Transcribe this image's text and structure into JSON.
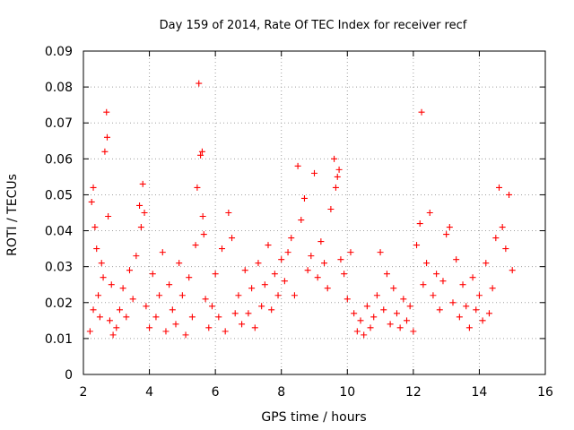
{
  "chart_data": {
    "type": "scatter",
    "title": "Day 159 of 2014, Rate Of TEC Index for receiver recf",
    "xlabel": "GPS time / hours",
    "ylabel": "ROTI / TECUs",
    "xlim": [
      2,
      16
    ],
    "ylim": [
      0,
      0.09
    ],
    "xticks": [
      2,
      4,
      6,
      8,
      10,
      12,
      14,
      16
    ],
    "xtick_labels": [
      "2",
      "4",
      "6",
      "8",
      "10",
      "12",
      "14",
      "16"
    ],
    "yticks": [
      0,
      0.01,
      0.02,
      0.03,
      0.04,
      0.05,
      0.06,
      0.07,
      0.08,
      0.09
    ],
    "ytick_labels": [
      "0",
      "0.01",
      "0.02",
      "0.03",
      "0.04",
      "0.05",
      "0.06",
      "0.07",
      "0.08",
      "0.09"
    ],
    "grid": true,
    "marker": "+",
    "series": [
      {
        "name": "ROTI",
        "color": "#ff0000",
        "x": [
          2.2,
          2.25,
          2.3,
          2.3,
          2.35,
          2.4,
          2.45,
          2.5,
          2.55,
          2.6,
          2.65,
          2.7,
          2.72,
          2.75,
          2.8,
          2.85,
          2.9,
          3.0,
          3.1,
          3.2,
          3.3,
          3.4,
          3.5,
          3.6,
          3.7,
          3.75,
          3.8,
          3.85,
          3.9,
          4.0,
          4.1,
          4.2,
          4.3,
          4.4,
          4.5,
          4.6,
          4.7,
          4.8,
          4.9,
          5.0,
          5.1,
          5.2,
          5.3,
          5.4,
          5.45,
          5.5,
          5.55,
          5.6,
          5.62,
          5.65,
          5.7,
          5.8,
          5.9,
          6.0,
          6.1,
          6.2,
          6.3,
          6.4,
          6.5,
          6.6,
          6.7,
          6.8,
          6.9,
          7.0,
          7.1,
          7.2,
          7.3,
          7.4,
          7.5,
          7.6,
          7.7,
          7.8,
          7.9,
          8.0,
          8.1,
          8.2,
          8.3,
          8.4,
          8.5,
          8.6,
          8.7,
          8.8,
          8.9,
          9.0,
          9.1,
          9.2,
          9.3,
          9.4,
          9.5,
          9.6,
          9.65,
          9.7,
          9.75,
          9.8,
          9.9,
          10.0,
          10.1,
          10.2,
          10.3,
          10.4,
          10.5,
          10.6,
          10.7,
          10.8,
          10.9,
          11.0,
          11.1,
          11.2,
          11.3,
          11.4,
          11.5,
          11.6,
          11.7,
          11.8,
          11.9,
          12.0,
          12.1,
          12.2,
          12.25,
          12.3,
          12.4,
          12.5,
          12.6,
          12.7,
          12.8,
          12.9,
          13.0,
          13.1,
          13.2,
          13.3,
          13.4,
          13.5,
          13.6,
          13.7,
          13.8,
          13.9,
          14.0,
          14.1,
          14.2,
          14.3,
          14.4,
          14.5,
          14.6,
          14.7,
          14.8,
          14.9,
          15.0
        ],
        "y": [
          0.012,
          0.048,
          0.052,
          0.018,
          0.041,
          0.035,
          0.022,
          0.016,
          0.031,
          0.027,
          0.062,
          0.073,
          0.066,
          0.044,
          0.015,
          0.025,
          0.011,
          0.013,
          0.018,
          0.024,
          0.016,
          0.029,
          0.021,
          0.033,
          0.047,
          0.041,
          0.053,
          0.045,
          0.019,
          0.013,
          0.028,
          0.016,
          0.022,
          0.034,
          0.012,
          0.025,
          0.018,
          0.014,
          0.031,
          0.022,
          0.011,
          0.027,
          0.016,
          0.036,
          0.052,
          0.081,
          0.061,
          0.062,
          0.044,
          0.039,
          0.021,
          0.013,
          0.019,
          0.028,
          0.016,
          0.035,
          0.012,
          0.045,
          0.038,
          0.017,
          0.022,
          0.014,
          0.029,
          0.017,
          0.024,
          0.013,
          0.031,
          0.019,
          0.025,
          0.036,
          0.018,
          0.028,
          0.022,
          0.032,
          0.026,
          0.034,
          0.038,
          0.022,
          0.058,
          0.043,
          0.049,
          0.029,
          0.033,
          0.056,
          0.027,
          0.037,
          0.031,
          0.024,
          0.046,
          0.06,
          0.052,
          0.055,
          0.057,
          0.032,
          0.028,
          0.021,
          0.034,
          0.017,
          0.012,
          0.015,
          0.011,
          0.019,
          0.013,
          0.016,
          0.022,
          0.034,
          0.018,
          0.028,
          0.014,
          0.024,
          0.017,
          0.013,
          0.021,
          0.015,
          0.019,
          0.012,
          0.036,
          0.042,
          0.073,
          0.025,
          0.031,
          0.045,
          0.022,
          0.028,
          0.018,
          0.026,
          0.039,
          0.041,
          0.02,
          0.032,
          0.016,
          0.025,
          0.019,
          0.013,
          0.027,
          0.018,
          0.022,
          0.015,
          0.031,
          0.017,
          0.024,
          0.038,
          0.052,
          0.041,
          0.035,
          0.05,
          0.029
        ]
      }
    ]
  }
}
